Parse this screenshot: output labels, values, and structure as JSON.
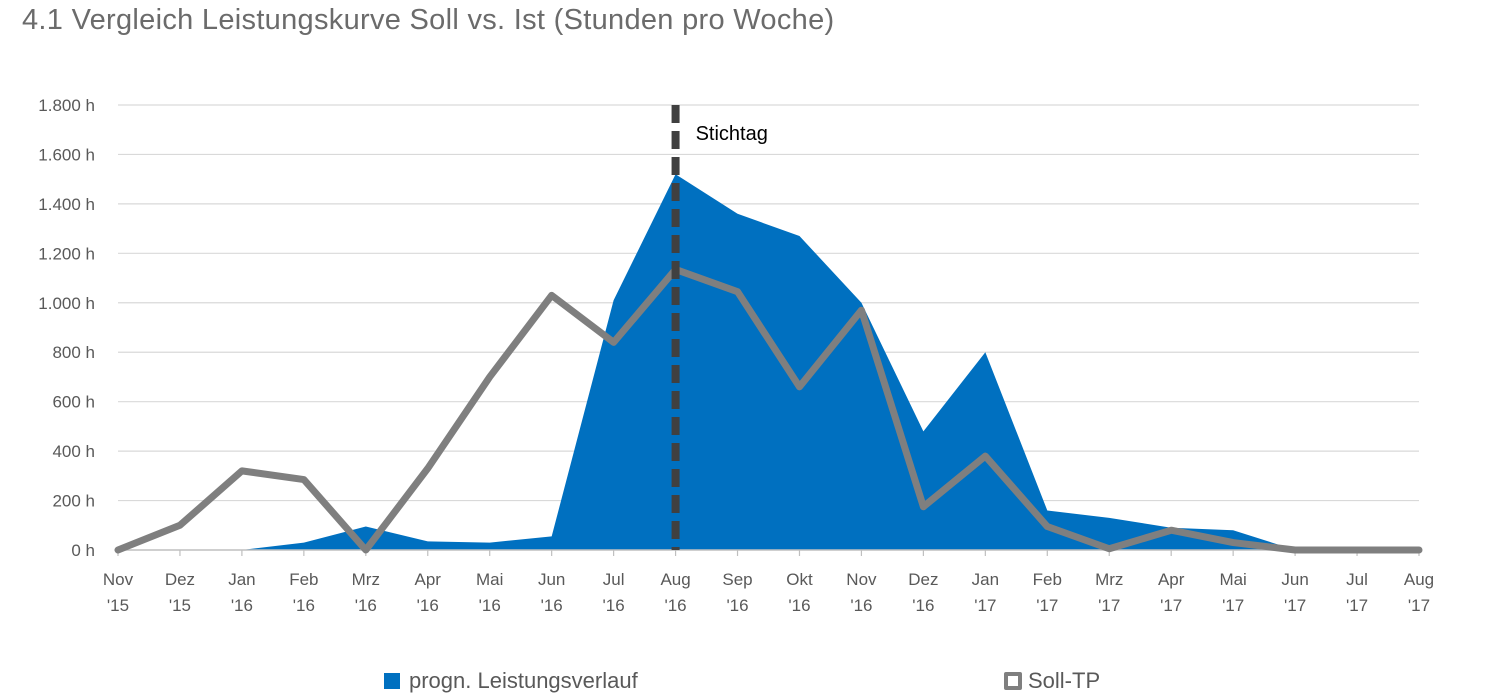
{
  "title": "4.1 Vergleich Leistungskurve Soll vs. Ist (Stunden pro Woche)",
  "chart_data": {
    "type": "area",
    "title": "4.1 Vergleich Leistungskurve Soll vs. Ist (Stunden pro Woche)",
    "categories": [
      [
        "Nov",
        "'15"
      ],
      [
        "Dez",
        "'15"
      ],
      [
        "Jan",
        "'16"
      ],
      [
        "Feb",
        "'16"
      ],
      [
        "Mrz",
        "'16"
      ],
      [
        "Apr",
        "'16"
      ],
      [
        "Mai",
        "'16"
      ],
      [
        "Jun",
        "'16"
      ],
      [
        "Jul",
        "'16"
      ],
      [
        "Aug",
        "'16"
      ],
      [
        "Sep",
        "'16"
      ],
      [
        "Okt",
        "'16"
      ],
      [
        "Nov",
        "'16"
      ],
      [
        "Dez",
        "'16"
      ],
      [
        "Jan",
        "'17"
      ],
      [
        "Feb",
        "'17"
      ],
      [
        "Mrz",
        "'17"
      ],
      [
        "Apr",
        "'17"
      ],
      [
        "Mai",
        "'17"
      ],
      [
        "Jun",
        "'17"
      ],
      [
        "Jul",
        "'17"
      ],
      [
        "Aug",
        "'17"
      ]
    ],
    "ylim": [
      0,
      1800
    ],
    "yticks": [
      0,
      200,
      400,
      600,
      800,
      1000,
      1200,
      1400,
      1600,
      1800
    ],
    "ytick_labels": [
      "0 h",
      "200 h",
      "400 h",
      "600 h",
      "800 h",
      "1.000 h",
      "1.200 h",
      "1.400 h",
      "1.600 h",
      "1.800 h"
    ],
    "grid": true,
    "series": [
      {
        "name": "progn. Leistungsverlauf",
        "kind": "area",
        "color": "#0070c0",
        "values": [
          0,
          0,
          0,
          30,
          95,
          35,
          30,
          55,
          1010,
          1520,
          1360,
          1270,
          1000,
          480,
          800,
          160,
          130,
          90,
          80,
          0,
          0,
          0
        ]
      },
      {
        "name": "Soll-TP",
        "kind": "line",
        "color": "#7f7f7f",
        "values": [
          0,
          100,
          320,
          285,
          0,
          330,
          700,
          1030,
          840,
          1135,
          1045,
          660,
          970,
          175,
          380,
          95,
          5,
          80,
          30,
          0,
          0,
          0
        ]
      }
    ],
    "annotations": [
      {
        "label": "Stichtag",
        "category_index": 9
      }
    ],
    "legend_position": "bottom"
  }
}
